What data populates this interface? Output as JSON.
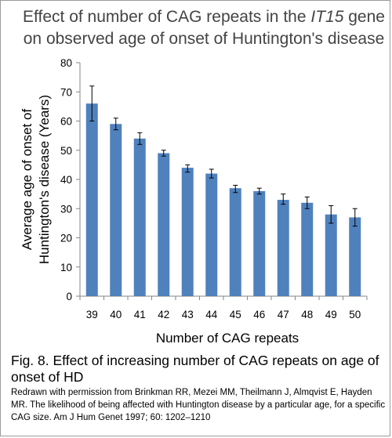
{
  "chart_data": {
    "type": "bar",
    "title_parts": [
      "Effect of number of CAG repeats in the ",
      "IT15",
      " gene"
    ],
    "title_line2": "on observed age of onset of Huntington's disease",
    "xlabel": "Number of CAG repeats",
    "ylabel_line1": "Average age of onset of",
    "ylabel_line2": "Huntington's disease (Years)",
    "categories": [
      "39",
      "40",
      "41",
      "42",
      "43",
      "44",
      "45",
      "46",
      "47",
      "48",
      "49",
      "50"
    ],
    "values": [
      66,
      59,
      54,
      49,
      44,
      42,
      37,
      36,
      33,
      32,
      28,
      27
    ],
    "error_low": [
      60,
      57,
      52,
      48,
      42.5,
      40.5,
      35.5,
      35,
      31.5,
      30,
      25,
      24
    ],
    "error_high": [
      72,
      61,
      56,
      50,
      45,
      43.5,
      38,
      37,
      35,
      34,
      31,
      30
    ],
    "ylim": [
      0,
      80
    ],
    "yticks": [
      0,
      10,
      20,
      30,
      40,
      50,
      60,
      70,
      80
    ],
    "bar_color": "#4f81bd",
    "grid": false,
    "legend": "none"
  },
  "caption": "Fig. 8.  Effect of increasing number of CAG repeats on age of onset of HD",
  "credit": "Redrawn with permission from Brinkman RR, Mezei MM, Theilmann J, Almqvist E, Hayden MR. The likelihood of being affected with Huntington disease by a particular age, for a specific CAG size. Am J Hum Genet 1997; 60: 1202–1210"
}
